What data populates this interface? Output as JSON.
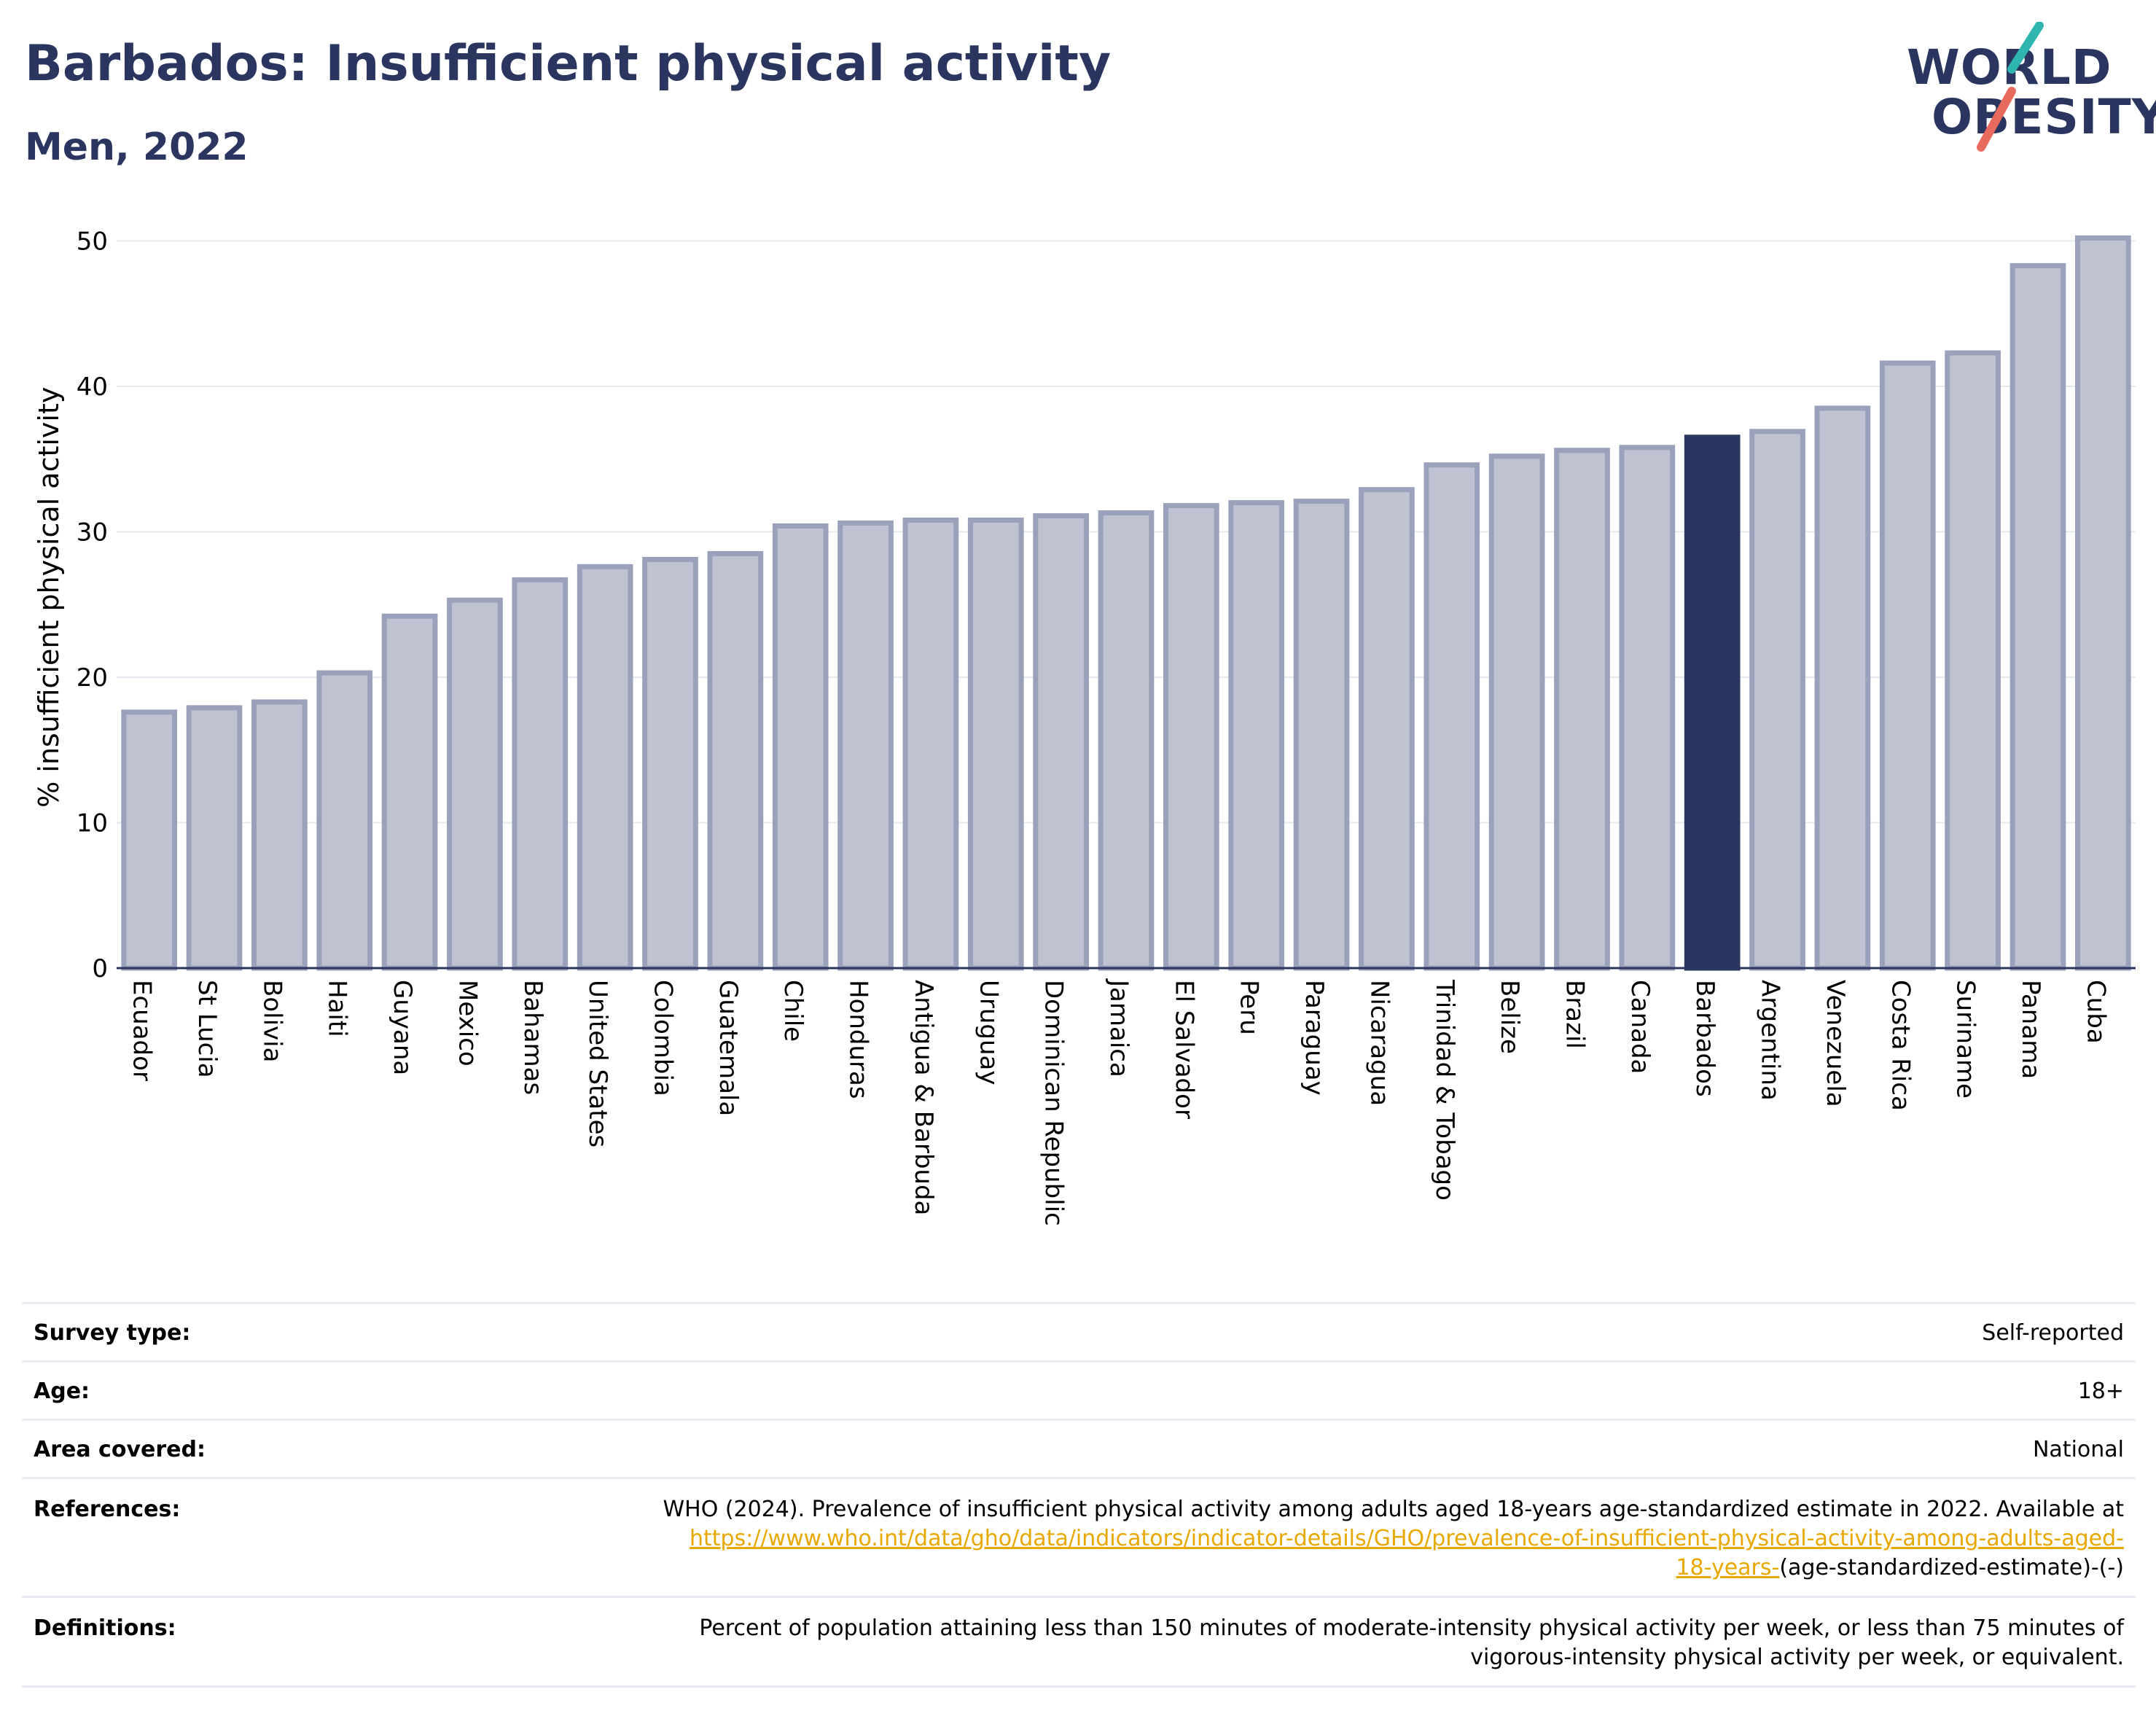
{
  "header": {
    "title": "Barbados: Insufficient physical activity",
    "subtitle": "Men, 2022"
  },
  "logo": {
    "line1": "WORLD",
    "line2": "OBESITY"
  },
  "colors": {
    "highlight": "#2a3560",
    "bar": "#bfc3d1",
    "bar_border": "#9aa1bb",
    "grid": "#e6e8ef",
    "logo_teal": "#2fb5b0",
    "logo_coral": "#e86a5c"
  },
  "chart_data": {
    "type": "bar",
    "ylabel": "% insufficient physical activity",
    "ylim": [
      0,
      51
    ],
    "yticks": [
      0,
      10,
      20,
      30,
      40,
      50
    ],
    "highlight": "Barbados",
    "categories": [
      "Ecuador",
      "St Lucia",
      "Bolivia",
      "Haiti",
      "Guyana",
      "Mexico",
      "Bahamas",
      "United States",
      "Colombia",
      "Guatemala",
      "Chile",
      "Honduras",
      "Antigua & Barbuda",
      "Uruguay",
      "Dominican Republic",
      "Jamaica",
      "El Salvador",
      "Peru",
      "Paraguay",
      "Nicaragua",
      "Trinidad & Tobago",
      "Belize",
      "Brazil",
      "Canada",
      "Barbados",
      "Argentina",
      "Venezuela",
      "Costa Rica",
      "Suriname",
      "Panama",
      "Cuba"
    ],
    "values": [
      17.6,
      17.9,
      18.3,
      20.3,
      24.2,
      25.3,
      26.7,
      27.6,
      28.1,
      28.5,
      30.4,
      30.6,
      30.8,
      30.8,
      31.1,
      31.3,
      31.8,
      32.0,
      32.1,
      32.9,
      34.6,
      35.2,
      35.6,
      35.8,
      36.5,
      36.9,
      38.5,
      41.6,
      42.3,
      48.3,
      50.2
    ]
  },
  "info": {
    "survey_label": "Survey type:",
    "survey_value": "Self-reported",
    "age_label": "Age:",
    "age_value": "18+",
    "area_label": "Area covered:",
    "area_value": "National",
    "ref_label": "References:",
    "ref_text": "WHO (2024). Prevalence of insufficient physical activity among adults aged 18-years age-standardized estimate in 2022. Available at",
    "ref_link_1": "https://www.who.int/data/gho/data/indicators/indicator-details/GHO/prevalence-of-insufficient-physical-activity-among-adults-aged-",
    "ref_link_2": "18-years-",
    "ref_tail": "(age-standardized-estimate)-(-)",
    "def_label": "Definitions:",
    "def_text_1": "Percent of population attaining less than 150 minutes of moderate-intensity physical activity per week, or less than 75 minutes of",
    "def_text_2": "vigorous-intensity physical activity per week, or equivalent."
  }
}
